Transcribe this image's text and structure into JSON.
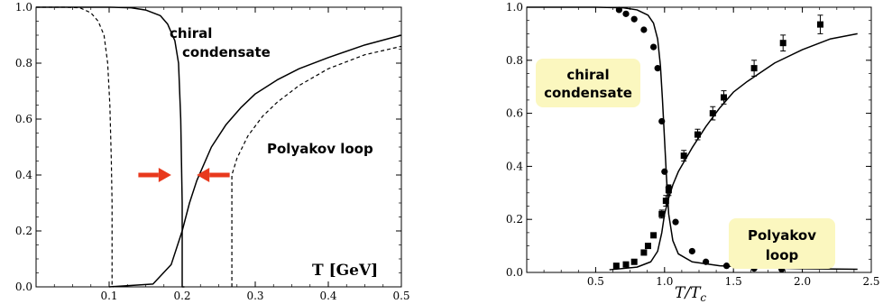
{
  "chart_data": [
    {
      "type": "line",
      "xlim": [
        0.0,
        0.5
      ],
      "ylim": [
        0.0,
        1.0
      ],
      "x_ticks": [
        0.1,
        0.2,
        0.3,
        0.4,
        0.5
      ],
      "y_ticks": [
        0.0,
        0.2,
        0.4,
        0.6,
        0.8,
        1.0
      ],
      "x_tick_labels": [
        "0.1",
        "0.2",
        "0.3",
        "0.4",
        "0.5"
      ],
      "y_tick_labels": [
        "0.0",
        "0.2",
        "0.4",
        "0.6",
        "0.8",
        "1.0"
      ],
      "xlabel": "T [GeV]",
      "grid": false,
      "annotations": {
        "chiral": [
          "chiral",
          "condensate"
        ],
        "polyakov": "Polyakov loop"
      },
      "series": [
        {
          "style": "solid",
          "x": [
            0.0,
            0.05,
            0.1,
            0.13,
            0.15,
            0.17,
            0.18,
            0.19,
            0.195,
            0.198,
            0.2,
            0.2,
            0.203
          ],
          "y": [
            1.0,
            1.0,
            1.0,
            0.998,
            0.99,
            0.97,
            0.94,
            0.88,
            0.8,
            0.6,
            0.3,
            0.0,
            0.0
          ]
        },
        {
          "style": "dashed",
          "x": [
            0.0,
            0.04,
            0.06,
            0.075,
            0.085,
            0.093,
            0.098,
            0.101,
            0.103,
            0.104,
            0.104,
            0.106
          ],
          "y": [
            1.0,
            1.0,
            0.998,
            0.98,
            0.95,
            0.9,
            0.8,
            0.65,
            0.45,
            0.3,
            0.0,
            0.0
          ]
        },
        {
          "style": "solid",
          "x": [
            0.1,
            0.16,
            0.185,
            0.2,
            0.21,
            0.22,
            0.24,
            0.26,
            0.28,
            0.3,
            0.33,
            0.36,
            0.4,
            0.45,
            0.5
          ],
          "y": [
            0.0,
            0.01,
            0.08,
            0.2,
            0.3,
            0.38,
            0.5,
            0.58,
            0.64,
            0.69,
            0.74,
            0.78,
            0.82,
            0.865,
            0.9
          ]
        },
        {
          "style": "dashed",
          "x": [
            0.268,
            0.268,
            0.275,
            0.29,
            0.31,
            0.33,
            0.36,
            0.4,
            0.45,
            0.5
          ],
          "y": [
            0.0,
            0.4,
            0.46,
            0.54,
            0.61,
            0.66,
            0.72,
            0.78,
            0.83,
            0.86
          ]
        }
      ],
      "arrows": [
        {
          "x_from": 0.14,
          "x_to": 0.185,
          "y": 0.4,
          "color": "#e8391d"
        },
        {
          "x_from": 0.265,
          "x_to": 0.22,
          "y": 0.4,
          "color": "#e8391d"
        }
      ]
    },
    {
      "type": "line",
      "xlim": [
        0.0,
        2.5
      ],
      "ylim": [
        0.0,
        1.0
      ],
      "x_ticks": [
        0.5,
        1.0,
        1.5,
        2.0,
        2.5
      ],
      "y_ticks": [
        0.0,
        0.2,
        0.4,
        0.6,
        0.8,
        1.0
      ],
      "x_tick_labels": [
        "0.5",
        "1.0",
        "1.5",
        "2.0",
        "2.5"
      ],
      "y_tick_labels": [
        "0.0",
        "0.2",
        "0.4",
        "0.6",
        "0.8",
        "1.0"
      ],
      "xlabel": "T/T_c",
      "grid": false,
      "annotations": {
        "chiral": [
          "chiral",
          "condensate"
        ],
        "polyakov": [
          "Polyakov",
          "loop"
        ],
        "box_color": "#fbf7bf"
      },
      "series": [
        {
          "style": "solid",
          "x": [
            0.0,
            0.5,
            0.7,
            0.8,
            0.88,
            0.92,
            0.95,
            0.97,
            0.985,
            1.0,
            1.015,
            1.03,
            1.06,
            1.1,
            1.2,
            1.4,
            1.7,
            2.0,
            2.4
          ],
          "y": [
            1.0,
            1.0,
            0.998,
            0.99,
            0.97,
            0.94,
            0.88,
            0.78,
            0.65,
            0.5,
            0.35,
            0.22,
            0.12,
            0.07,
            0.04,
            0.025,
            0.018,
            0.014,
            0.012
          ]
        },
        {
          "style": "solid",
          "x": [
            0.6,
            0.8,
            0.9,
            0.95,
            0.98,
            1.0,
            1.03,
            1.06,
            1.1,
            1.2,
            1.3,
            1.4,
            1.5,
            1.6,
            1.8,
            2.0,
            2.2,
            2.4
          ],
          "y": [
            0.01,
            0.02,
            0.04,
            0.08,
            0.15,
            0.22,
            0.28,
            0.33,
            0.38,
            0.47,
            0.55,
            0.62,
            0.68,
            0.72,
            0.79,
            0.84,
            0.88,
            0.9
          ]
        }
      ],
      "points_circle": {
        "x": [
          0.67,
          0.72,
          0.78,
          0.85,
          0.92,
          0.95,
          0.98,
          1.0,
          1.03,
          1.08,
          1.2,
          1.3,
          1.45,
          1.65,
          1.85
        ],
        "y": [
          0.99,
          0.975,
          0.955,
          0.915,
          0.85,
          0.77,
          0.57,
          0.38,
          0.32,
          0.19,
          0.08,
          0.04,
          0.025,
          0.015,
          0.012
        ]
      },
      "points_square": {
        "x": [
          0.65,
          0.72,
          0.78,
          0.85,
          0.88,
          0.92,
          0.98,
          1.01,
          1.03,
          1.14,
          1.24,
          1.35,
          1.43,
          1.65,
          1.86,
          2.13
        ],
        "y": [
          0.025,
          0.03,
          0.04,
          0.075,
          0.1,
          0.14,
          0.22,
          0.27,
          0.31,
          0.44,
          0.52,
          0.6,
          0.66,
          0.77,
          0.865,
          0.935
        ],
        "err": [
          0,
          0,
          0,
          0,
          0,
          0,
          0.015,
          0.02,
          0.02,
          0.02,
          0.02,
          0.025,
          0.025,
          0.03,
          0.03,
          0.035
        ]
      }
    }
  ]
}
